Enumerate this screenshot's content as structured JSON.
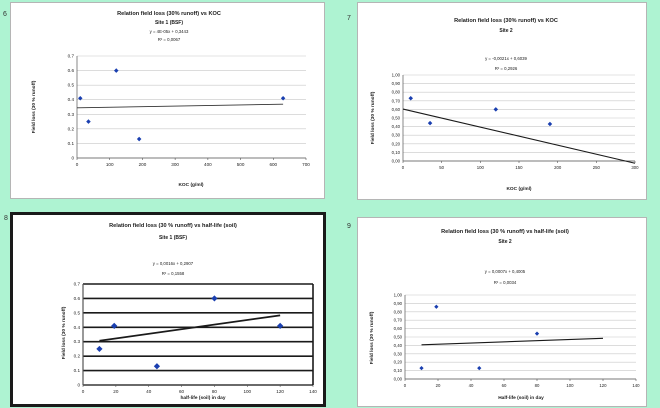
{
  "chart_data": [
    {
      "type": "scatter",
      "number": "6",
      "title": "Relation field loss (30% runoff) vs KOC",
      "subtitle": "Site 1 (BSF)",
      "equation": "y = 4E-05x + 0,3443",
      "r2": "R² = 0,0067",
      "xlabel": "KOC (g/ml)",
      "ylabel": "Field loss (30 % runoff)",
      "xlim": [
        0,
        700
      ],
      "ylim": [
        0,
        0.7
      ],
      "xticks": [
        "0",
        "100",
        "200",
        "300",
        "400",
        "500",
        "600",
        "700"
      ],
      "yticks": [
        "0",
        "0.1",
        "0.2",
        "0.3",
        "0.4",
        "0.5",
        "0.6",
        "0.7"
      ],
      "points": [
        {
          "x": 10,
          "y": 0.41
        },
        {
          "x": 35,
          "y": 0.25
        },
        {
          "x": 120,
          "y": 0.6
        },
        {
          "x": 190,
          "y": 0.13
        },
        {
          "x": 630,
          "y": 0.41
        }
      ],
      "trendline": {
        "slope": 4e-05,
        "intercept": 0.3443
      },
      "trend_x": [
        0,
        630
      ],
      "style": "light",
      "colors": {
        "point": "#1a3fb0",
        "grid": "#c8c8c8",
        "trend": "#333333"
      }
    },
    {
      "type": "scatter",
      "number": "7",
      "title": "Relation field loss (30% runoff) vs KOC",
      "subtitle": "Site 2",
      "equation": "y = -0,0021x + 0,6039",
      "r2": "R² = 0,2926",
      "xlabel": "KOC (g/ml)",
      "ylabel": "Field loss (30 % runoff)",
      "xlim": [
        0,
        300
      ],
      "ylim": [
        0,
        1
      ],
      "xticks": [
        "0",
        "50",
        "100",
        "150",
        "200",
        "250",
        "300"
      ],
      "yticks": [
        "0,00",
        "0,10",
        "0,20",
        "0,30",
        "0,40",
        "0,50",
        "0,60",
        "0,70",
        "0,80",
        "0,90",
        "1,00"
      ],
      "points": [
        {
          "x": 10,
          "y": 0.73
        },
        {
          "x": 35,
          "y": 0.44
        },
        {
          "x": 120,
          "y": 0.6
        },
        {
          "x": 190,
          "y": 0.43
        }
      ],
      "trendline": {
        "slope": -0.0021,
        "intercept": 0.6039
      },
      "trend_x": [
        0,
        300
      ],
      "style": "light",
      "colors": {
        "point": "#1a3fb0",
        "grid": "#c8c8c8",
        "trend": "#1a1a1a"
      }
    },
    {
      "type": "scatter",
      "number": "8",
      "title": "Relation field loss (30 % runoff) vs half-life (soil)",
      "subtitle": "Site 1 (BSF)",
      "equation": "y = 0,0016x + 0,2907",
      "r2": "R² = 0,1558",
      "xlabel": "half-life (soil) in day",
      "ylabel": "Field loss (30 % runoff)",
      "xlim": [
        0,
        140
      ],
      "ylim": [
        0,
        0.7
      ],
      "xticks": [
        "0",
        "20",
        "40",
        "60",
        "80",
        "100",
        "120",
        "140"
      ],
      "yticks": [
        "0",
        "0.1",
        "0.2",
        "0.3",
        "0.4",
        "0.5",
        "0.6",
        "0.7"
      ],
      "points": [
        {
          "x": 10,
          "y": 0.25
        },
        {
          "x": 19,
          "y": 0.41
        },
        {
          "x": 45,
          "y": 0.13
        },
        {
          "x": 80,
          "y": 0.6
        },
        {
          "x": 120,
          "y": 0.41
        }
      ],
      "trendline": {
        "slope": 0.0016,
        "intercept": 0.2907
      },
      "trend_x": [
        10,
        120
      ],
      "style": "dark",
      "colors": {
        "point": "#1a3fb0",
        "grid": "#1a1a1a",
        "trend": "#1a1a1a"
      }
    },
    {
      "type": "scatter",
      "number": "9",
      "title": "Relation field loss (30 % runoff) vs half-life (soil)",
      "subtitle": "Site 2",
      "equation": "y = 0,0007x + 0,4005",
      "r2": "R² = 0,0034",
      "xlabel": "Half-life (soil) in day",
      "ylabel": "Field loss (30 % runoff)",
      "xlim": [
        0,
        140
      ],
      "ylim": [
        0,
        1
      ],
      "xticks": [
        "0",
        "20",
        "40",
        "60",
        "80",
        "100",
        "120",
        "140"
      ],
      "yticks": [
        "0,00",
        "0,10",
        "0,20",
        "0,30",
        "0,40",
        "0,50",
        "0,60",
        "0,70",
        "0,80",
        "0,90",
        "1,00"
      ],
      "points": [
        {
          "x": 10,
          "y": 0.13
        },
        {
          "x": 19,
          "y": 0.86
        },
        {
          "x": 45,
          "y": 0.13
        },
        {
          "x": 80,
          "y": 0.54
        }
      ],
      "trendline": {
        "slope": 0.0007,
        "intercept": 0.4005
      },
      "trend_x": [
        10,
        120
      ],
      "style": "light",
      "colors": {
        "point": "#1a3fb0",
        "grid": "#c8c8c8",
        "trend": "#1a1a1a"
      }
    }
  ]
}
